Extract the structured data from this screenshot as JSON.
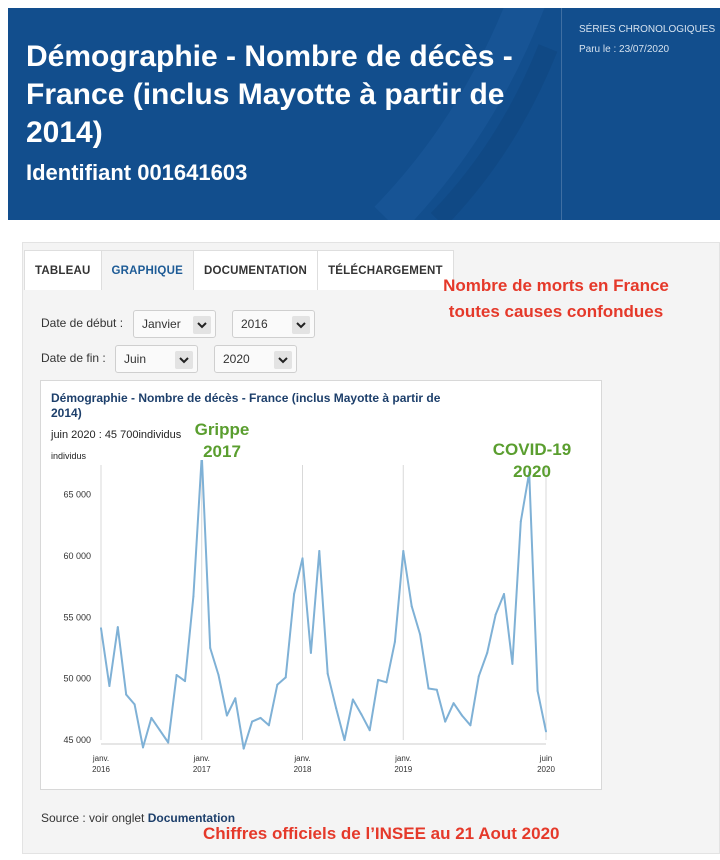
{
  "header": {
    "title": "Démographie - Nombre de décès - France (inclus Mayotte à partir de 2014)",
    "identifier": "Identifiant 001641603",
    "category": "SÉRIES CHRONOLOGIQUES",
    "published": "Paru le : 23/07/2020"
  },
  "tabs": [
    {
      "label": "TABLEAU"
    },
    {
      "label": "GRAPHIQUE"
    },
    {
      "label": "DOCUMENTATION"
    },
    {
      "label": "TÉLÉCHARGEMENT"
    }
  ],
  "form": {
    "start_label": "Date de début :",
    "start_month": "Janvier",
    "start_year": "2016",
    "end_label": "Date de fin :",
    "end_month": "Juin",
    "end_year": "2020"
  },
  "annotations": {
    "red_note": "Nombre de morts en France toutes causes confondues",
    "grippe": "Grippe 2017",
    "covid": "COVID-19 2020",
    "footer": "Chiffres officiels de l’INSEE au 21 Aout 2020"
  },
  "source": {
    "prefix": "Source : voir onglet",
    "link": "Documentation"
  },
  "colors": {
    "banner": "#124e8d",
    "line": "#7fb1d6",
    "red_annotation": "#e5392a",
    "green_annotation": "#5a9e2f"
  },
  "chart_data": {
    "type": "line",
    "title": "Démographie - Nombre de décès - France (inclus Mayotte à partir de 2014)",
    "subtitle": "juin 2020 : 45 700individus",
    "ylabel": "individus",
    "ylim": [
      45000,
      67000
    ],
    "yticks": [
      "45 000",
      "50 000",
      "55 000",
      "60 000",
      "65 000"
    ],
    "ytick_values": [
      45000,
      50000,
      55000,
      60000,
      65000
    ],
    "xticks": [
      {
        "line1": "janv.",
        "line2": "2016",
        "index": 0
      },
      {
        "line1": "janv.",
        "line2": "2017",
        "index": 12
      },
      {
        "line1": "janv.",
        "line2": "2018",
        "index": 24
      },
      {
        "line1": "janv.",
        "line2": "2019",
        "index": 36
      },
      {
        "line1": "juin",
        "line2": "2020",
        "index": 53
      }
    ],
    "x": [
      "2016-01",
      "2016-02",
      "2016-03",
      "2016-04",
      "2016-05",
      "2016-06",
      "2016-07",
      "2016-08",
      "2016-09",
      "2016-10",
      "2016-11",
      "2016-12",
      "2017-01",
      "2017-02",
      "2017-03",
      "2017-04",
      "2017-05",
      "2017-06",
      "2017-07",
      "2017-08",
      "2017-09",
      "2017-10",
      "2017-11",
      "2017-12",
      "2018-01",
      "2018-02",
      "2018-03",
      "2018-04",
      "2018-05",
      "2018-06",
      "2018-07",
      "2018-08",
      "2018-09",
      "2018-10",
      "2018-11",
      "2018-12",
      "2019-01",
      "2019-02",
      "2019-03",
      "2019-04",
      "2019-05",
      "2019-06",
      "2019-07",
      "2019-08",
      "2019-09",
      "2019-10",
      "2019-11",
      "2019-12",
      "2020-01",
      "2020-02",
      "2020-03",
      "2020-04",
      "2020-05",
      "2020-06"
    ],
    "values": [
      54100,
      49400,
      54200,
      48700,
      47900,
      44400,
      46800,
      45800,
      44800,
      50300,
      49800,
      56700,
      68200,
      52500,
      50300,
      47000,
      48400,
      44300,
      46500,
      46800,
      46200,
      49500,
      50100,
      56900,
      59800,
      52100,
      60400,
      50400,
      47600,
      45000,
      48300,
      47100,
      45800,
      49900,
      49700,
      53000,
      60400,
      55900,
      53600,
      49200,
      49100,
      46500,
      48000,
      47000,
      46200,
      50200,
      52100,
      55200,
      56900,
      51200,
      62800,
      66800,
      49000,
      45700
    ]
  }
}
